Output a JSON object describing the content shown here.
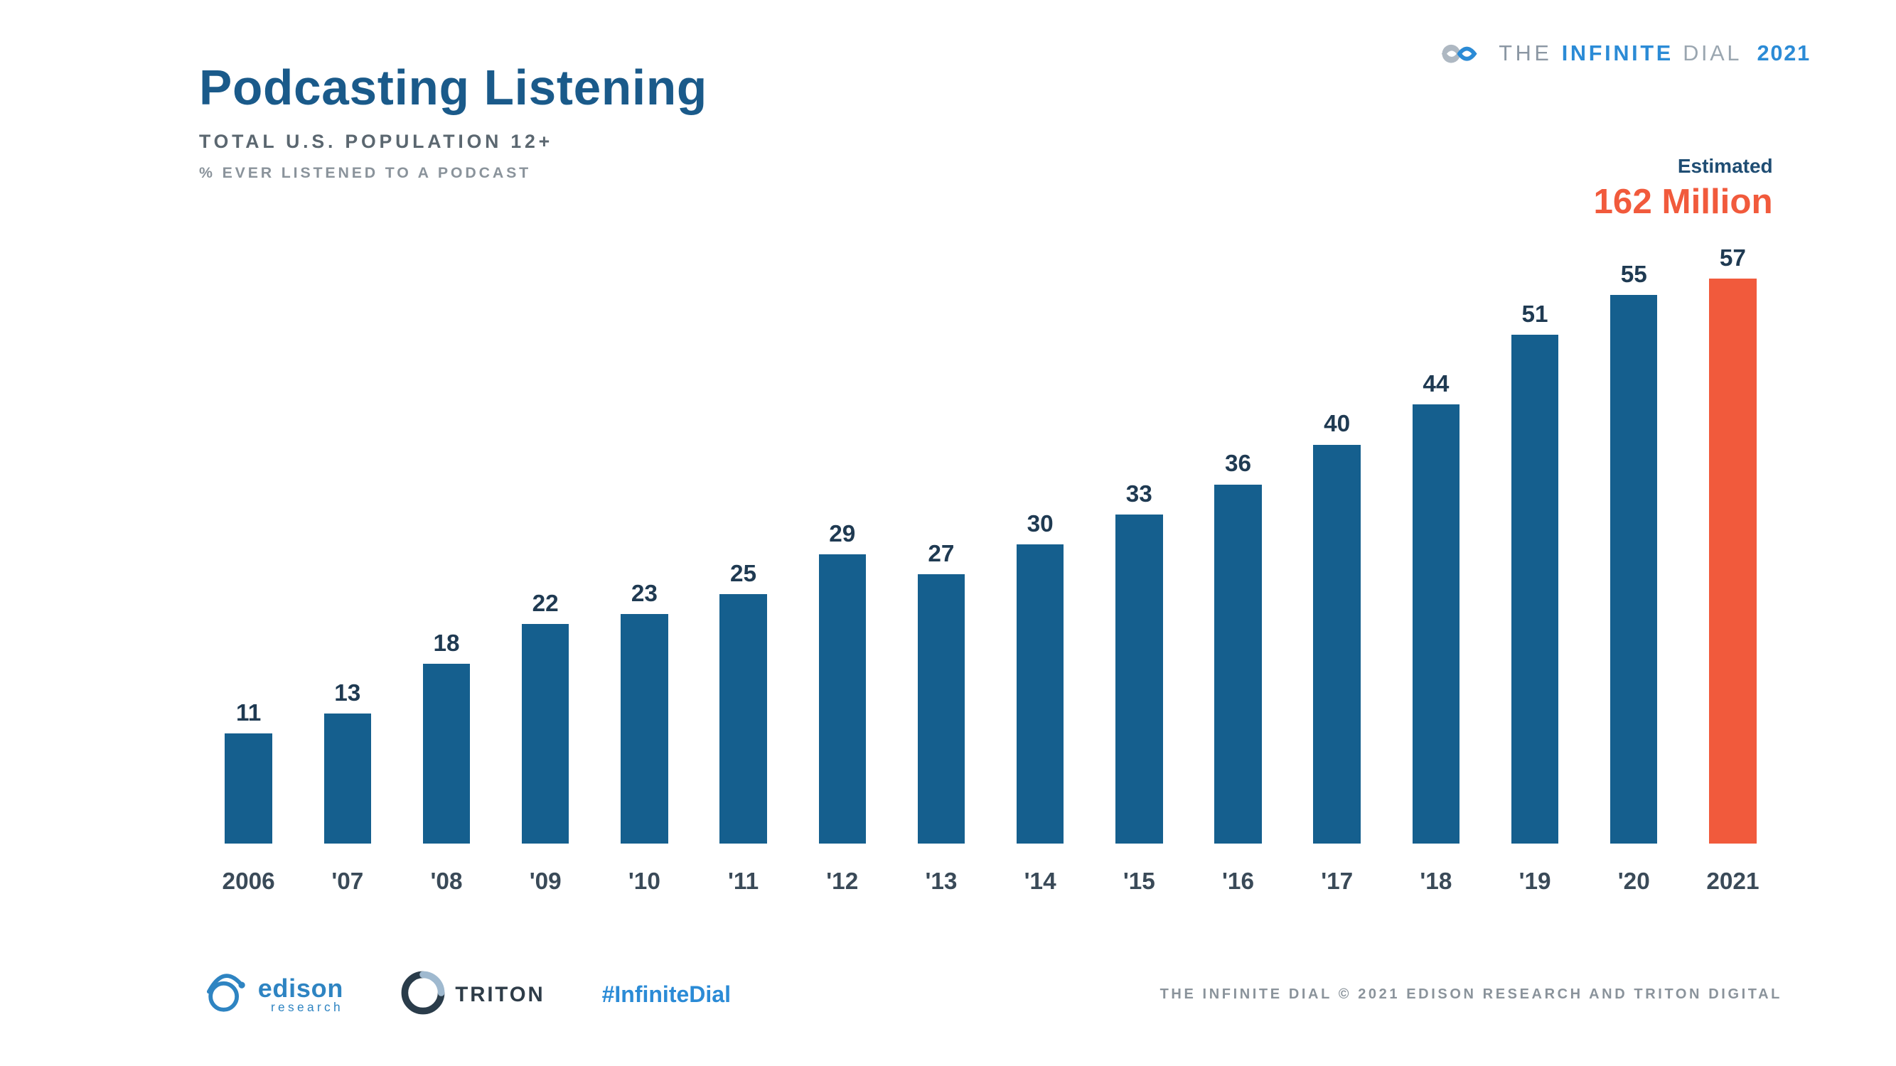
{
  "header": {
    "title": "Podcasting Listening",
    "subtitle1": "TOTAL U.S. POPULATION 12+",
    "subtitle2": "% EVER LISTENED TO A PODCAST",
    "title_color": "#1a5a8a",
    "title_fontsize_vw": 2.6,
    "subtitle1_color": "#5b6770",
    "subtitle2_color": "#8a939b"
  },
  "brand": {
    "the": "THE",
    "infinite": "INFINITE",
    "dial": "DIAL",
    "year": "2021",
    "text_primary_color": "#2b8bd6",
    "text_muted_color": "#8b97a3"
  },
  "callout": {
    "est_label": "Estimated",
    "est_color": "#1f4d73",
    "value": "162 Million",
    "value_color": "#f15a3c"
  },
  "chart": {
    "type": "bar",
    "y_max": 60,
    "y_min": 0,
    "bar_width_pct": 62,
    "value_label_color": "#1f3a52",
    "value_label_fontsize_vw": 1.25,
    "x_label_color": "#3a4a58",
    "x_label_fontsize_vw": 1.25,
    "background_color": "#ffffff",
    "grid": false,
    "categories": [
      "2006",
      "'07",
      "'08",
      "'09",
      "'10",
      "'11",
      "'12",
      "'13",
      "'14",
      "'15",
      "'16",
      "'17",
      "'18",
      "'19",
      "'20",
      "2021"
    ],
    "values": [
      11,
      13,
      18,
      22,
      23,
      25,
      29,
      27,
      30,
      33,
      36,
      40,
      44,
      51,
      55,
      57
    ],
    "bar_colors": [
      "#155f8e",
      "#155f8e",
      "#155f8e",
      "#155f8e",
      "#155f8e",
      "#155f8e",
      "#155f8e",
      "#155f8e",
      "#155f8e",
      "#155f8e",
      "#155f8e",
      "#155f8e",
      "#155f8e",
      "#155f8e",
      "#155f8e",
      "#f15a3c"
    ]
  },
  "footer": {
    "edison": {
      "name": "edison",
      "sub": "research",
      "color": "#2e84c2"
    },
    "triton": {
      "name": "TRITON",
      "color": "#2e3c48"
    },
    "hashtag": "#InfiniteDial",
    "hashtag_color": "#2b8bd6",
    "copyright": "THE INFINITE DIAL   © 2021 EDISON RESEARCH AND TRITON DIGITAL",
    "copyright_color": "#8a939b"
  }
}
